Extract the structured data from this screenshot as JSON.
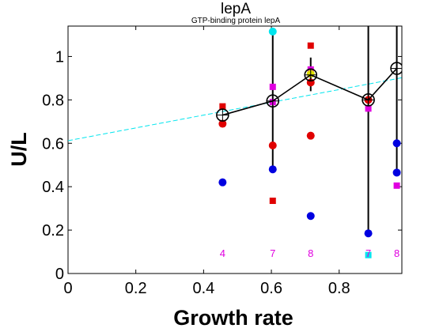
{
  "chart_data": {
    "type": "scatter",
    "title": "lepA",
    "subtitle": "GTP-binding protein lepA",
    "xlabel": "Growth rate",
    "ylabel": "U/L",
    "xlim": [
      0,
      0.985
    ],
    "ylim": [
      0,
      1.14
    ],
    "xticks": [
      0,
      0.2,
      0.4,
      0.6,
      0.8
    ],
    "xtick_labels": [
      "0",
      "0.2",
      "0.4",
      "0.6",
      "0.8"
    ],
    "yticks": [
      0,
      0.2,
      0.4,
      0.6,
      0.8,
      1
    ],
    "ytick_labels": [
      "0",
      "0.2",
      "0.4",
      "0.6",
      "0.8",
      "1"
    ],
    "grid": false,
    "fit_line": {
      "x": [
        0,
        0.985
      ],
      "y": [
        0.612,
        0.902
      ],
      "color": "#00e5ee",
      "style": "dashed"
    },
    "mean_series": {
      "x": [
        0.456,
        0.604,
        0.716,
        0.886,
        0.97
      ],
      "y": [
        0.73,
        0.795,
        0.915,
        0.8,
        0.945
      ]
    },
    "error_bars": [
      {
        "x": 0.604,
        "low": 0.48,
        "high": 1.12
      },
      {
        "x": 0.716,
        "low": 0.84,
        "high": 0.995
      },
      {
        "x": 0.886,
        "low": 0.185,
        "high": 1.14
      },
      {
        "x": 0.97,
        "low": 0.465,
        "high": 1.14
      }
    ],
    "points": [
      {
        "x": 0.456,
        "y": 0.77,
        "shape": "square",
        "color": "#e00000"
      },
      {
        "x": 0.456,
        "y": 0.69,
        "shape": "circle",
        "color": "#e00000"
      },
      {
        "x": 0.456,
        "y": 0.42,
        "shape": "circle",
        "color": "#0000e0"
      },
      {
        "x": 0.604,
        "y": 1.115,
        "shape": "circle",
        "color": "#00e5ee"
      },
      {
        "x": 0.604,
        "y": 0.86,
        "shape": "square",
        "color": "#e000e0"
      },
      {
        "x": 0.604,
        "y": 0.79,
        "shape": "square",
        "color": "#e000e0"
      },
      {
        "x": 0.604,
        "y": 0.59,
        "shape": "circle",
        "color": "#e00000"
      },
      {
        "x": 0.604,
        "y": 0.48,
        "shape": "circle",
        "color": "#0000e0"
      },
      {
        "x": 0.604,
        "y": 0.335,
        "shape": "square",
        "color": "#e00000"
      },
      {
        "x": 0.716,
        "y": 1.05,
        "shape": "square",
        "color": "#e00000"
      },
      {
        "x": 0.716,
        "y": 0.94,
        "shape": "square",
        "color": "#e000e0"
      },
      {
        "x": 0.716,
        "y": 0.92,
        "shape": "circle",
        "color": "#e0e000"
      },
      {
        "x": 0.716,
        "y": 0.88,
        "shape": "circle",
        "color": "#e00000"
      },
      {
        "x": 0.716,
        "y": 0.635,
        "shape": "circle",
        "color": "#e00000"
      },
      {
        "x": 0.716,
        "y": 0.265,
        "shape": "circle",
        "color": "#0000e0"
      },
      {
        "x": 0.886,
        "y": 0.8,
        "shape": "circle",
        "color": "#e00000"
      },
      {
        "x": 0.886,
        "y": 0.76,
        "shape": "square",
        "color": "#e000e0"
      },
      {
        "x": 0.886,
        "y": 0.185,
        "shape": "circle",
        "color": "#0000e0"
      },
      {
        "x": 0.886,
        "y": 0.085,
        "shape": "square",
        "color": "#00e5ee"
      },
      {
        "x": 0.97,
        "y": 0.6,
        "shape": "circle",
        "color": "#0000e0"
      },
      {
        "x": 0.97,
        "y": 0.465,
        "shape": "circle",
        "color": "#0000e0"
      },
      {
        "x": 0.97,
        "y": 0.405,
        "shape": "square",
        "color": "#e000e0"
      }
    ],
    "count_labels": [
      {
        "x": 0.456,
        "text": "4"
      },
      {
        "x": 0.604,
        "text": "7"
      },
      {
        "x": 0.716,
        "text": "8"
      },
      {
        "x": 0.886,
        "text": "7"
      },
      {
        "x": 0.97,
        "text": "8"
      }
    ],
    "count_label_y": 0.095,
    "count_label_color": "#e000e0"
  }
}
